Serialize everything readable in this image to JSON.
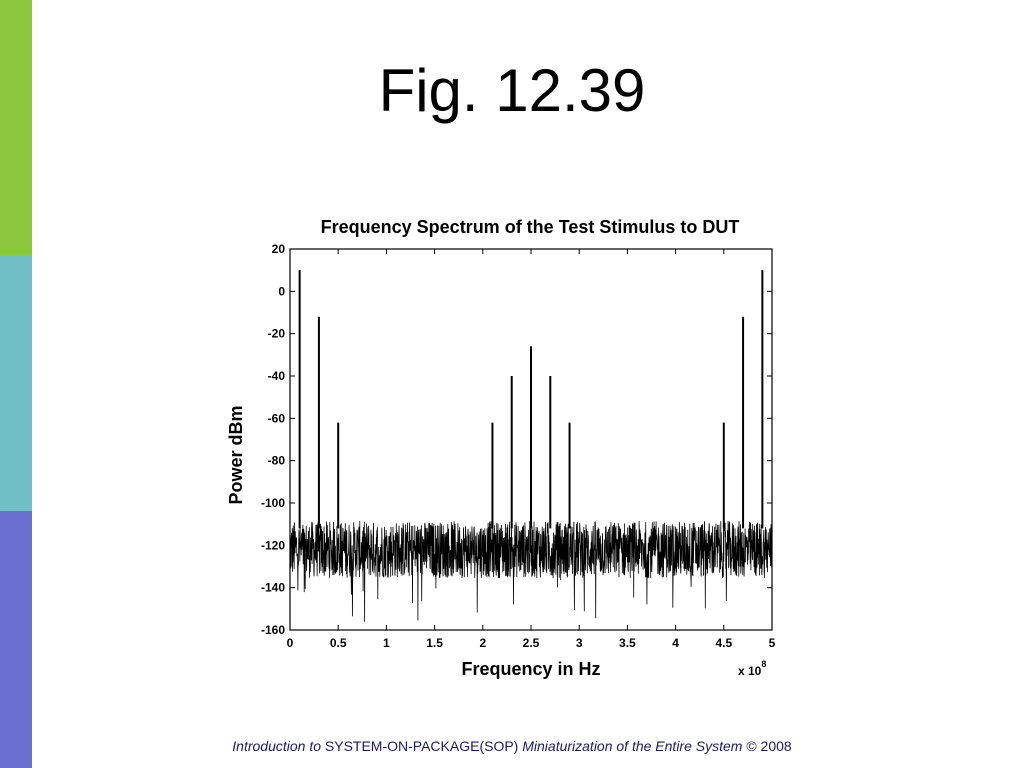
{
  "slide": {
    "title": "Fig. 12.39",
    "stripe_colors": [
      "#8dc63f",
      "#6fbfc4",
      "#6a6fd0"
    ]
  },
  "footer": {
    "part1": "Introduction to",
    "part2": "SYSTEM-ON-PACKAGE(SOP)",
    "part3": "Miniaturization of the Entire System",
    "part4": "© 2008"
  },
  "chart_data": {
    "type": "line",
    "title": "Frequency Spectrum of the Test Stimulus to DUT",
    "xlabel": "Frequency in Hz",
    "ylabel": "Power dBm",
    "x_multiplier_label": "x 10",
    "x_multiplier_exp": "8",
    "xlim": [
      0,
      5
    ],
    "ylim": [
      -160,
      20
    ],
    "x_ticks": [
      0,
      0.5,
      1,
      1.5,
      2,
      2.5,
      3,
      3.5,
      4,
      4.5,
      5
    ],
    "x_tick_labels": [
      "0",
      "0.5",
      "1",
      "1.5",
      "2",
      "2.5",
      "3",
      "3.5",
      "4",
      "4.5",
      "5"
    ],
    "y_ticks": [
      20,
      0,
      -20,
      -40,
      -60,
      -80,
      -100,
      -120,
      -140,
      -160
    ],
    "y_tick_labels": [
      "20",
      "0",
      "-20",
      "-40",
      "-60",
      "-80",
      "-100",
      "-120",
      "-140",
      "-160"
    ],
    "grid": false,
    "noise_floor": {
      "min": -135,
      "max": -108,
      "typical": -122,
      "deep_dips_to": -157
    },
    "peaks": [
      {
        "x": 0.1,
        "y": 10
      },
      {
        "x": 0.3,
        "y": -12
      },
      {
        "x": 0.5,
        "y": -62
      },
      {
        "x": 2.1,
        "y": -62
      },
      {
        "x": 2.3,
        "y": -40
      },
      {
        "x": 2.5,
        "y": -26
      },
      {
        "x": 2.7,
        "y": -40
      },
      {
        "x": 2.9,
        "y": -62
      },
      {
        "x": 4.5,
        "y": -62
      },
      {
        "x": 4.7,
        "y": -12
      },
      {
        "x": 4.9,
        "y": 10
      }
    ],
    "line_color": "#000000"
  }
}
